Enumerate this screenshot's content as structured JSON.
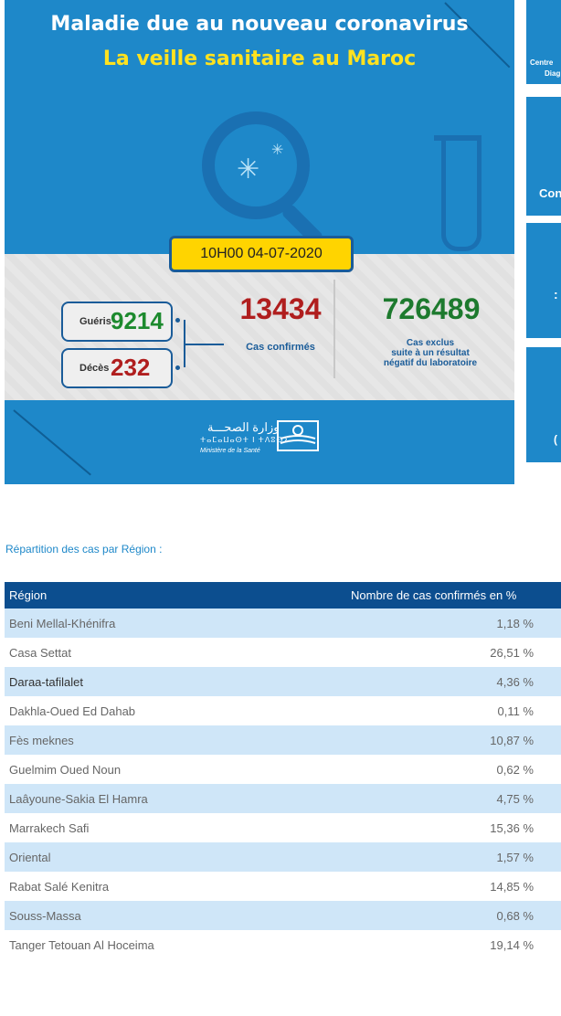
{
  "banner": {
    "title_line1": "Maladie due au nouveau coronavirus",
    "title_line2": "La veille sanitaire au Maroc",
    "datetime": "10H00  04-07-2020",
    "gueris_label": "Guéris",
    "gueris_value": "9214",
    "deces_label": "Décès",
    "deces_value": "232",
    "confirmed_value": "13434",
    "confirmed_label": "Cas confirmés",
    "excluded_value": "726489",
    "excluded_label_line1": "Cas exclus",
    "excluded_label_line2": "suite à un résultat",
    "excluded_label_line3": "négatif du laboratoire",
    "ministry_arabic": "وزارة الصحـــة",
    "ministry_tifinagh": "ⵜⴰⵎⴰⵡⴰⵙⵜ ⵏ ⵜⴷⵓⵙⵉ",
    "ministry_french": "Ministère de la Santé"
  },
  "side_cards": {
    "card1_line1": "Centre",
    "card1_line2": "Diag",
    "card2_text": "Con",
    "card3_text": ":",
    "card4_text": "("
  },
  "caption": "Répartition des cas par Région :",
  "table": {
    "headers": [
      "Région",
      "Nombre de cas confirmés en %"
    ],
    "rows": [
      {
        "region": "Beni Mellal-Khénifra",
        "pct": "1,18 %"
      },
      {
        "region": "Casa Settat",
        "pct": "26,51 %"
      },
      {
        "region": "Daraa-tafilalet",
        "pct": "4,36 %"
      },
      {
        "region": "Dakhla-Oued Ed Dahab",
        "pct": "0,11 %"
      },
      {
        "region": "Fès meknes",
        "pct": "10,87 %"
      },
      {
        "region": "Guelmim Oued Noun",
        "pct": "0,62 %"
      },
      {
        "region": "Laâyoune-Sakia El Hamra",
        "pct": "4,75 %"
      },
      {
        "region": "Marrakech Safi",
        "pct": "15,36 %"
      },
      {
        "region": "Oriental",
        "pct": "1,57 %"
      },
      {
        "region": "Rabat Salé Kenitra",
        "pct": "14,85 %"
      },
      {
        "region": "Souss-Massa",
        "pct": "0,68 %"
      },
      {
        "region": "Tanger Tetouan Al Hoceima",
        "pct": "19,14 %"
      }
    ]
  },
  "colors": {
    "banner_blue": "#1e88c9",
    "header_navy": "#0c4e8f",
    "row_stripe": "#cfe6f8",
    "confirmed_red": "#b01e1e",
    "recovered_green": "#1d8a2e",
    "date_yellow": "#ffd400"
  }
}
